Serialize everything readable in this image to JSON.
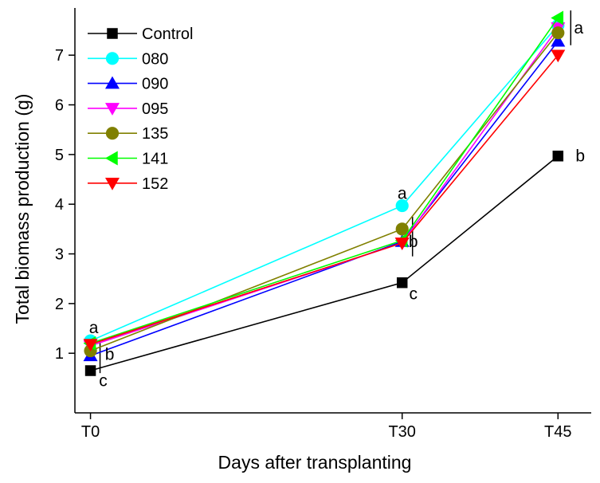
{
  "chart_data": {
    "type": "line",
    "xlabel": "Days after transplanting",
    "ylabel": "Total biomass production (g)",
    "categories": [
      "T0",
      "T30",
      "T45"
    ],
    "x_positions": [
      0,
      30,
      45
    ],
    "xlim": [
      -1.5,
      48.2
    ],
    "ylim": [
      -0.2,
      7.95
    ],
    "yticks": [
      1,
      2,
      3,
      4,
      5,
      6,
      7
    ],
    "grid": false,
    "legend_position": "top-left",
    "series": [
      {
        "name": "Control",
        "color": "#000000",
        "marker": "square",
        "values": [
          0.65,
          2.42,
          4.97
        ]
      },
      {
        "name": "080",
        "color": "#00ffff",
        "marker": "circle",
        "values": [
          1.25,
          3.97,
          7.6
        ]
      },
      {
        "name": "090",
        "color": "#0000ff",
        "marker": "triangle-up",
        "values": [
          0.95,
          3.25,
          7.28
        ]
      },
      {
        "name": "095",
        "color": "#ff00ff",
        "marker": "triangle-down",
        "values": [
          1.15,
          3.22,
          7.55
        ]
      },
      {
        "name": "135",
        "color": "#808000",
        "marker": "circle",
        "values": [
          1.05,
          3.5,
          7.45
        ]
      },
      {
        "name": "141",
        "color": "#00ff00",
        "marker": "triangle-left",
        "values": [
          1.2,
          3.27,
          7.75
        ]
      },
      {
        "name": "152",
        "color": "#ff0000",
        "marker": "triangle-down",
        "values": [
          1.18,
          3.22,
          7.0
        ]
      }
    ],
    "annotations": [
      {
        "text": "a",
        "x": 0,
        "y": 1.52
      },
      {
        "text": "b",
        "x": 0,
        "y": 0.98
      },
      {
        "text": "c",
        "x": 0,
        "y": 0.45
      },
      {
        "text": "a",
        "x": 30,
        "y": 4.22
      },
      {
        "text": "b",
        "x": 30,
        "y": 3.25
      },
      {
        "text": "c",
        "x": 30,
        "y": 2.2
      },
      {
        "text": "a",
        "x": 45,
        "y": 7.55
      },
      {
        "text": "b",
        "x": 45,
        "y": 4.97
      }
    ]
  }
}
